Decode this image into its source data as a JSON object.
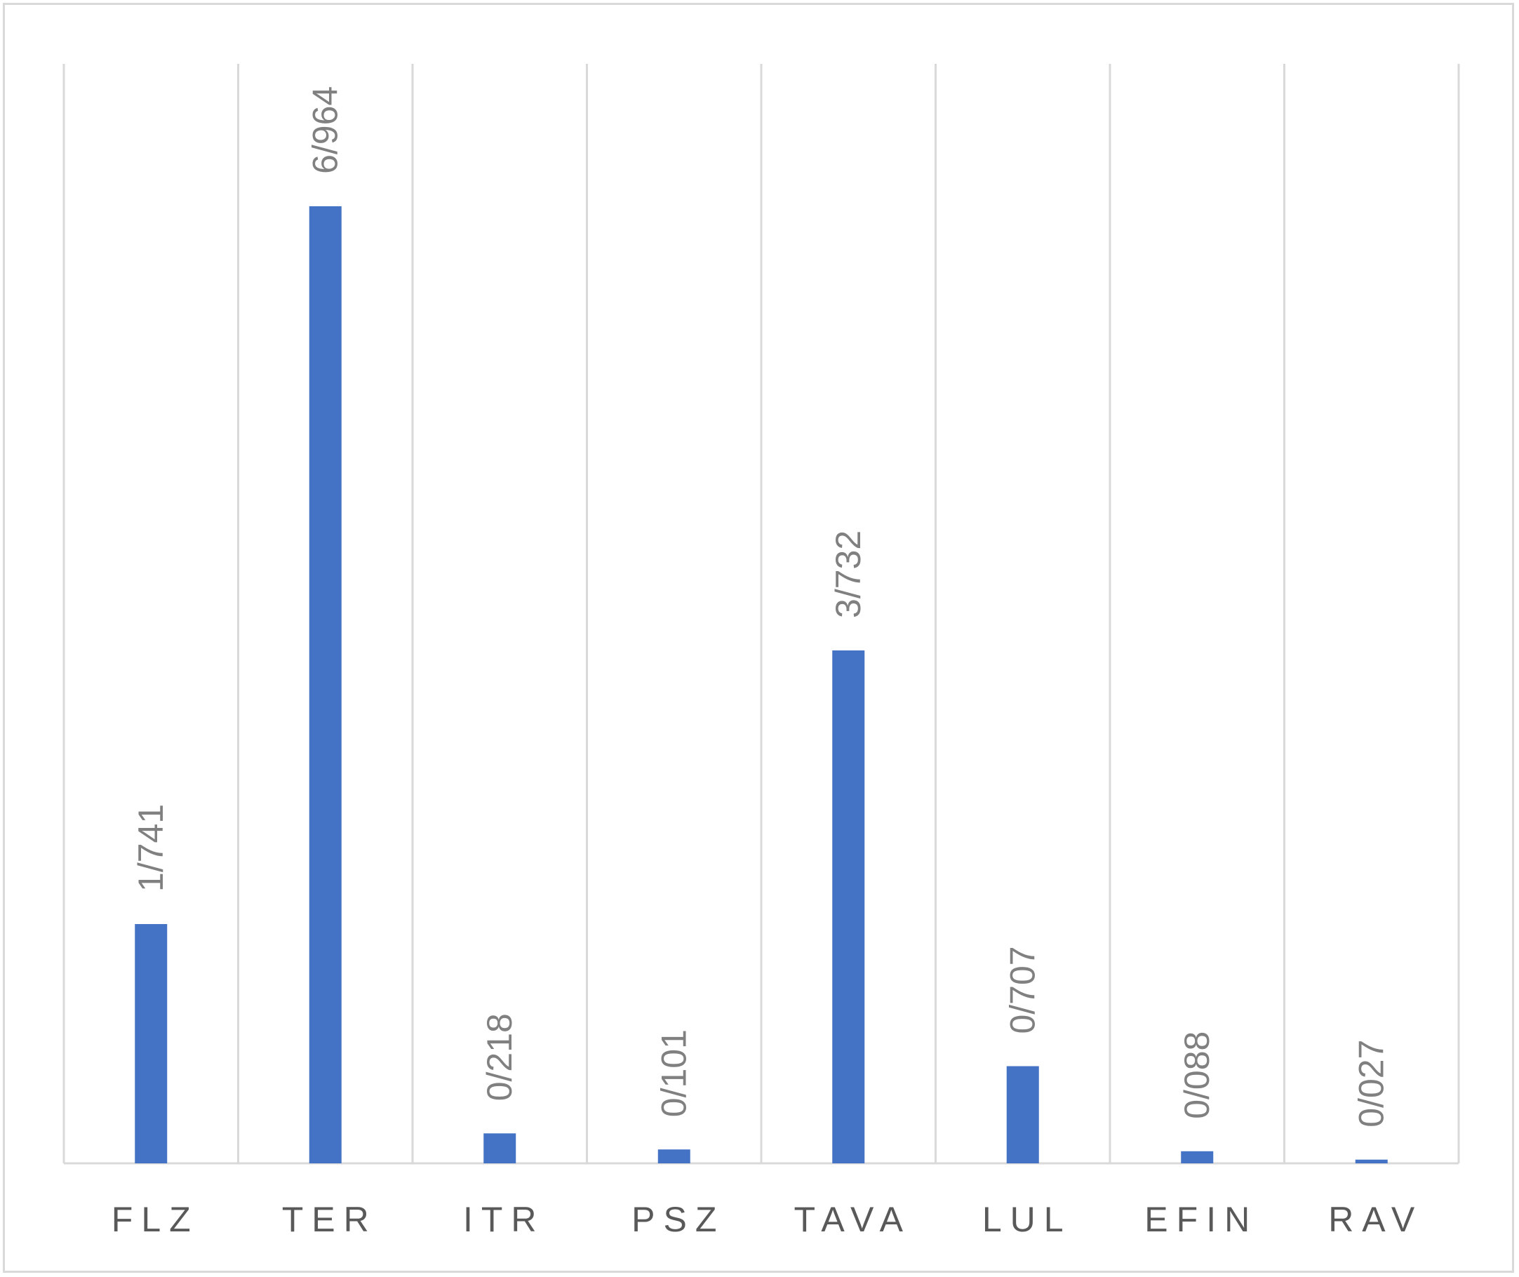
{
  "chart_data": {
    "type": "bar",
    "title": "",
    "xlabel": "",
    "ylabel": "",
    "categories": [
      "FLZ",
      "TER",
      "ITR",
      "PSZ",
      "TAVA",
      "LUL",
      "EFIN",
      "RAV"
    ],
    "values": [
      1.741,
      6.964,
      0.218,
      0.101,
      3.732,
      0.707,
      0.088,
      0.027
    ],
    "data_labels": [
      "1/741",
      "6/964",
      "0/218",
      "0/101",
      "3/732",
      "0/707",
      "0/088",
      "0/027"
    ],
    "ylim": [
      0,
      8
    ],
    "grid": "vertical separators between categories",
    "legend": "none",
    "bar_color": "#4472c4",
    "label_color": "#808080",
    "category_label_color": "#595959"
  }
}
